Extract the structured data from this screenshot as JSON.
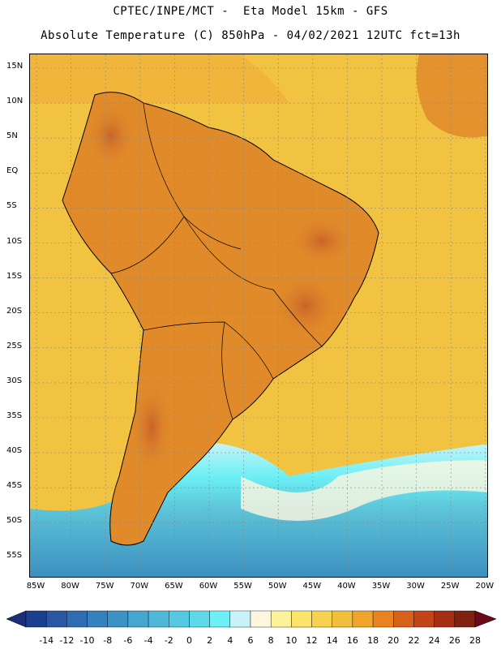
{
  "header": {
    "title_line1": "CPTEC/INPE/MCT -  Eta Model 15km - GFS",
    "title_line2": "Absolute Temperature (C) 850hPa - 04/02/2021 12UTC fct=13h"
  },
  "map": {
    "lat_labels": [
      "15N",
      "10N",
      "5N",
      "EQ",
      "5S",
      "10S",
      "15S",
      "20S",
      "25S",
      "30S",
      "35S",
      "40S",
      "45S",
      "50S",
      "55S"
    ],
    "lon_labels": [
      "85W",
      "80W",
      "75W",
      "70W",
      "65W",
      "60W",
      "55W",
      "50W",
      "45W",
      "40W",
      "35W",
      "30W",
      "25W",
      "20W"
    ],
    "colors": {
      "ocean_warm": "#f2c341",
      "ocean_mid": "#f0b53a",
      "land_warm": "#e08a2a",
      "land_hot": "#c9622a",
      "cool_water": "#5cc3d8",
      "cold_water": "#3a8fc0",
      "boundary": "#000000",
      "grid": "#888888"
    }
  },
  "colorbar": {
    "labels": [
      "-14",
      "-12",
      "-10",
      "-8",
      "-6",
      "-4",
      "-2",
      "0",
      "2",
      "4",
      "6",
      "8",
      "10",
      "12",
      "14",
      "16",
      "18",
      "20",
      "22",
      "24",
      "26",
      "28"
    ],
    "colors": [
      "#1a3f8f",
      "#2a56a3",
      "#2f6db3",
      "#3581bd",
      "#3d92c5",
      "#45a6cf",
      "#4fb8d8",
      "#55c9e2",
      "#5ed9ea",
      "#6cf0f5",
      "#c8f4f8",
      "#fff6e0",
      "#fff39a",
      "#fbe46a",
      "#f6d24e",
      "#f1bf3a",
      "#eea52a",
      "#e9831f",
      "#d8611a",
      "#c24417",
      "#a52e14",
      "#80200f"
    ],
    "arrow_left": "#1a2e7a",
    "arrow_right": "#6b0b1a"
  }
}
